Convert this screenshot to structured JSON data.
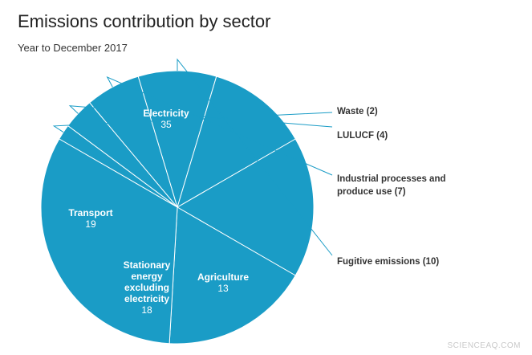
{
  "chart_data": {
    "type": "pie",
    "title": "Emissions contribution by sector",
    "subtitle": "Year to December 2017",
    "slices": [
      {
        "name": "Waste",
        "value": 2
      },
      {
        "name": "LULUCF",
        "value": 4
      },
      {
        "name": "Industrial processes and produce use",
        "value": 7
      },
      {
        "name": "Fugitive emissions",
        "value": 10
      },
      {
        "name": "Agriculture",
        "value": 13
      },
      {
        "name": "Stationary energy excluding electricity",
        "value": 18
      },
      {
        "name": "Transport",
        "value": 19
      },
      {
        "name": "Electricity",
        "value": 35
      }
    ],
    "outside_labels": [
      "Waste (2)",
      "LULUCF (4)",
      "Industrial processes and produce use (7)",
      "Fugitive emissions (10)"
    ],
    "inside_labels": [
      "Electricity",
      "Transport",
      "Stationary energy excluding electricity",
      "Agriculture"
    ],
    "colors": {
      "slice": "#1a9cc6",
      "border": "#ffffff",
      "inside_text": "#ffffff",
      "outside_text": "#333333",
      "leader": "#1a9cc6"
    }
  },
  "watermark": "SCIENCEAQ.COM"
}
